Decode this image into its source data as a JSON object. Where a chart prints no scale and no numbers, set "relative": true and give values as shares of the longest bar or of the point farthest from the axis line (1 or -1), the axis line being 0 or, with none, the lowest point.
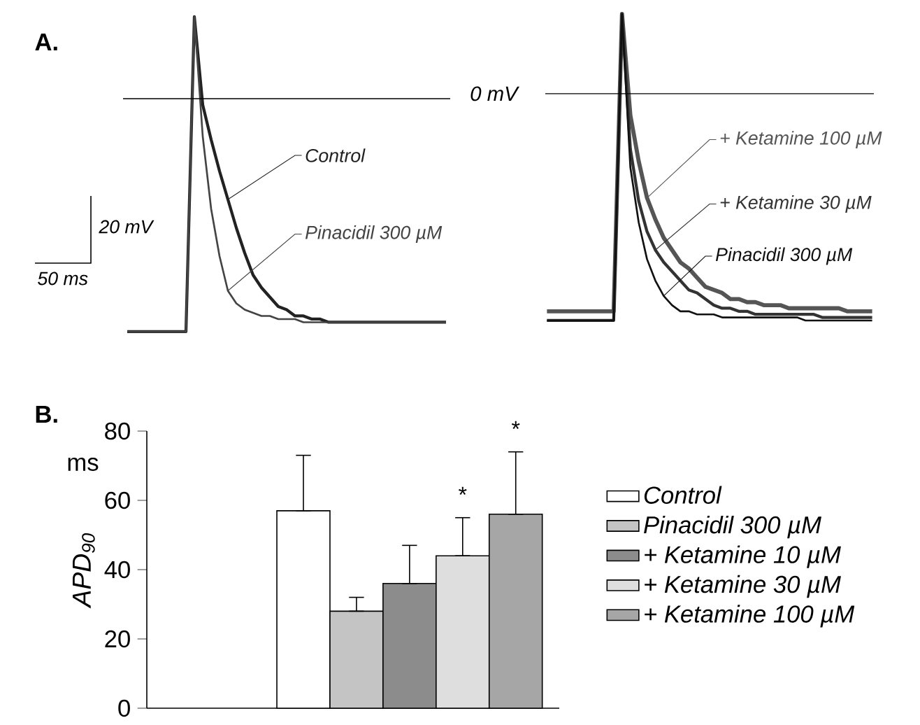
{
  "chart_data": [
    {
      "type": "line",
      "title": "A.",
      "relative": true,
      "categories": [
        null,
        null,
        null,
        null,
        null,
        null,
        null,
        null,
        null,
        null,
        null,
        null,
        null,
        null,
        null,
        null,
        null,
        null,
        null,
        null,
        null,
        null,
        null,
        null,
        null,
        null,
        null,
        null,
        null,
        null,
        null,
        null,
        null,
        null,
        null,
        null,
        null,
        null,
        null
      ],
      "series": [
        {
          "name": "Control",
          "color": "#222222",
          "values": [
            0,
            0,
            0,
            0,
            0,
            0,
            0,
            0,
            1,
            0.72,
            0.61,
            0.51,
            0.42,
            0.33,
            0.25,
            0.18,
            0.14,
            0.11,
            0.08,
            0.07,
            0.05,
            0.05,
            0.04,
            0.04,
            0.03,
            0.03,
            0.03,
            0.03,
            0.03,
            0.03,
            0.03,
            0.03,
            0.03,
            0.03,
            0.03,
            0.03,
            0.03,
            0.03,
            0.03
          ]
        },
        {
          "name": "Pinacidil 300 µM",
          "color": "#444444",
          "values": [
            0,
            0,
            0,
            0,
            0,
            0,
            0,
            0,
            1,
            0.62,
            0.39,
            0.24,
            0.13,
            0.09,
            0.07,
            0.06,
            0.05,
            0.05,
            0.04,
            0.04,
            0.04,
            0.03,
            0.03,
            0.03,
            0.03,
            0.03,
            0.03,
            0.03,
            0.03,
            0.03,
            0.03,
            0.03,
            0.03,
            0.03,
            0.03,
            0.03,
            0.03,
            0.03,
            0.03
          ]
        }
      ],
      "ref_lines": [
        {
          "axis": "y",
          "value": 0.74
        }
      ],
      "annotations": [
        "20 mV",
        "50 ms"
      ]
    },
    {
      "type": "line",
      "relative": true,
      "categories": [
        null,
        null,
        null,
        null,
        null,
        null,
        null,
        null,
        null,
        null,
        null,
        null,
        null,
        null,
        null,
        null,
        null,
        null,
        null,
        null,
        null,
        null,
        null,
        null,
        null,
        null,
        null,
        null,
        null,
        null,
        null,
        null,
        null,
        null,
        null,
        null,
        null,
        null,
        null,
        null
      ],
      "series": [
        {
          "name": "+ Ketamine 100 µM",
          "color": "#555555",
          "values": [
            0.03,
            0.03,
            0.03,
            0.03,
            0.03,
            0.03,
            0.03,
            0.03,
            0.03,
            1,
            0.67,
            0.52,
            0.4,
            0.33,
            0.27,
            0.23,
            0.19,
            0.17,
            0.14,
            0.11,
            0.1,
            0.09,
            0.07,
            0.07,
            0.06,
            0.06,
            0.05,
            0.05,
            0.05,
            0.04,
            0.04,
            0.04,
            0.04,
            0.04,
            0.04,
            0.04,
            0.03,
            0.03,
            0.03,
            0.03
          ]
        },
        {
          "name": "+ Ketamine 30 µM",
          "color": "#333333",
          "values": [
            0,
            0,
            0,
            0,
            0,
            0,
            0,
            0,
            0,
            1,
            0.56,
            0.39,
            0.29,
            0.23,
            0.19,
            0.16,
            0.13,
            0.1,
            0.09,
            0.07,
            0.05,
            0.04,
            0.04,
            0.03,
            0.03,
            0.02,
            0.02,
            0.02,
            0.02,
            0.02,
            0.02,
            0.02,
            0.02,
            0.01,
            0.01,
            0.01,
            0.01,
            0.01,
            0.01,
            0.01
          ]
        },
        {
          "name": "Pinacidil 300 µM",
          "color": "#111111",
          "values": [
            0,
            0,
            0,
            0,
            0,
            0,
            0,
            0,
            0,
            1,
            0.5,
            0.32,
            0.2,
            0.13,
            0.08,
            0.05,
            0.03,
            0.03,
            0.02,
            0.02,
            0.02,
            0.01,
            0.01,
            0.01,
            0.01,
            0.01,
            0.01,
            0.01,
            0.01,
            0.01,
            0.01,
            0,
            0,
            0,
            0,
            0,
            0,
            0,
            0,
            0
          ]
        }
      ],
      "ref_lines": [
        {
          "axis": "y",
          "value": 0.74,
          "label": "0 mV"
        }
      ]
    },
    {
      "type": "bar",
      "title": "B.",
      "ylabel": "APD$_{90}$",
      "categories": [
        null
      ],
      "series": [
        {
          "name": "Control",
          "color": "#ffffff",
          "values": [
            57
          ],
          "errors": [
            [
              57,
              73
            ]
          ]
        },
        {
          "name": "Pinacidil 300 µM",
          "color": "#c4c4c4",
          "values": [
            28
          ],
          "errors": [
            [
              28,
              32
            ]
          ]
        },
        {
          "name": "+ Ketamine 10 µM",
          "color": "#8c8c8c",
          "values": [
            36
          ],
          "errors": [
            [
              36,
              47
            ]
          ]
        },
        {
          "name": "+ Ketamine 30 µM",
          "color": "#dedede",
          "values": [
            44
          ],
          "errors": [
            [
              44,
              55
            ]
          ]
        },
        {
          "name": "+ Ketamine 100 µM",
          "color": "#a6a6a6",
          "values": [
            56
          ],
          "errors": [
            [
              56,
              74
            ]
          ]
        }
      ],
      "ylim": [
        0,
        80
      ],
      "yticks": [
        0,
        20,
        40,
        60,
        80
      ],
      "legend": "right",
      "annotations": [
        "ms",
        "*",
        "*"
      ]
    }
  ]
}
